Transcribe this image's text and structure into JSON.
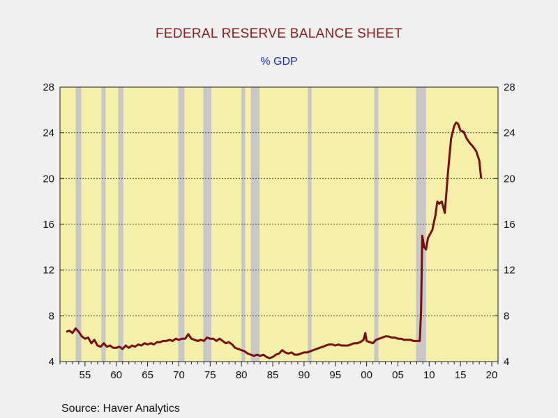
{
  "chart_data": {
    "type": "line",
    "title": "FEDERAL RESERVE BALANCE SHEET",
    "subtitle": "% GDP",
    "source": "Source:  Haver Analytics",
    "xlim": [
      1951,
      2021
    ],
    "ylim": [
      4,
      28
    ],
    "y_ticks": [
      4,
      8,
      12,
      16,
      20,
      24,
      28
    ],
    "x_ticks": [
      {
        "year": 1955,
        "label": "55"
      },
      {
        "year": 1960,
        "label": "60"
      },
      {
        "year": 1965,
        "label": "65"
      },
      {
        "year": 1970,
        "label": "70"
      },
      {
        "year": 1975,
        "label": "75"
      },
      {
        "year": 1980,
        "label": "80"
      },
      {
        "year": 1985,
        "label": "85"
      },
      {
        "year": 1990,
        "label": "90"
      },
      {
        "year": 1995,
        "label": "95"
      },
      {
        "year": 2000,
        "label": "00"
      },
      {
        "year": 2005,
        "label": "05"
      },
      {
        "year": 2010,
        "label": "10"
      },
      {
        "year": 2015,
        "label": "15"
      },
      {
        "year": 2020,
        "label": "20"
      }
    ],
    "recessions": [
      [
        1953.5,
        1954.4
      ],
      [
        1957.6,
        1958.3
      ],
      [
        1960.3,
        1961.1
      ],
      [
        1969.9,
        1970.9
      ],
      [
        1973.9,
        1975.2
      ],
      [
        1980.0,
        1980.6
      ],
      [
        1981.5,
        1982.9
      ],
      [
        1990.6,
        1991.2
      ],
      [
        2001.2,
        2001.9
      ],
      [
        2007.9,
        2009.5
      ]
    ],
    "grid_y": true,
    "colors": {
      "plot_bg": "#f5f0a8",
      "recession": "#c8c8c8",
      "line": "#7b0d0d",
      "title": "#8b1a1a",
      "subtitle": "#1f2fbf"
    },
    "series": [
      {
        "x": [
          1952.0,
          1952.5,
          1953.0,
          1953.5,
          1954.0,
          1954.5,
          1955.0,
          1955.5,
          1956.0,
          1956.5,
          1957.0,
          1957.5,
          1958.0,
          1958.5,
          1959.0,
          1959.5,
          1960.0,
          1960.5,
          1961.0,
          1961.5,
          1962.0,
          1962.5,
          1963.0,
          1963.5,
          1964.0,
          1964.5,
          1965.0,
          1965.5,
          1966.0,
          1966.5,
          1967.0,
          1967.5,
          1968.0,
          1968.5,
          1969.0,
          1969.5,
          1970.0,
          1970.5,
          1971.0,
          1971.5,
          1972.0,
          1972.5,
          1973.0,
          1973.5,
          1974.0,
          1974.5,
          1975.0,
          1975.5,
          1976.0,
          1976.5,
          1977.0,
          1977.5,
          1978.0,
          1978.5,
          1979.0,
          1979.5,
          1980.0,
          1980.5,
          1981.0,
          1981.5,
          1982.0,
          1982.5,
          1983.0,
          1983.5,
          1984.0,
          1984.5,
          1985.0,
          1985.5,
          1986.0,
          1986.5,
          1987.0,
          1987.5,
          1988.0,
          1988.5,
          1989.0,
          1989.5,
          1990.0,
          1990.5,
          1991.0,
          1991.5,
          1992.0,
          1992.5,
          1993.0,
          1993.5,
          1994.0,
          1994.5,
          1995.0,
          1995.5,
          1996.0,
          1996.5,
          1997.0,
          1997.5,
          1998.0,
          1998.5,
          1999.0,
          1999.5,
          1999.8,
          2000.0,
          2000.5,
          2001.0,
          2001.5,
          2002.0,
          2002.5,
          2003.0,
          2003.5,
          2004.0,
          2004.5,
          2005.0,
          2005.5,
          2006.0,
          2006.5,
          2007.0,
          2007.5,
          2008.0,
          2008.5,
          2008.7,
          2008.9,
          2009.2,
          2009.5,
          2009.8,
          2010.0,
          2010.5,
          2011.0,
          2011.3,
          2011.6,
          2012.0,
          2012.5,
          2013.0,
          2013.5,
          2014.0,
          2014.3,
          2014.6,
          2015.0,
          2015.5,
          2016.0,
          2016.5,
          2017.0,
          2017.5,
          2018.0,
          2018.3
        ],
        "values": [
          6.6,
          6.7,
          6.5,
          6.9,
          6.6,
          6.2,
          6.0,
          6.1,
          5.6,
          5.9,
          5.4,
          5.3,
          5.6,
          5.3,
          5.4,
          5.2,
          5.2,
          5.3,
          5.1,
          5.4,
          5.2,
          5.4,
          5.3,
          5.5,
          5.4,
          5.6,
          5.5,
          5.6,
          5.5,
          5.7,
          5.7,
          5.8,
          5.8,
          5.9,
          5.8,
          6.0,
          5.9,
          6.0,
          6.0,
          6.4,
          6.0,
          5.9,
          5.8,
          5.9,
          5.8,
          6.1,
          6.0,
          6.0,
          5.8,
          6.0,
          5.8,
          5.6,
          5.7,
          5.5,
          5.2,
          5.1,
          5.0,
          4.9,
          4.7,
          4.6,
          4.5,
          4.6,
          4.5,
          4.6,
          4.4,
          4.3,
          4.4,
          4.6,
          4.7,
          5.0,
          4.8,
          4.7,
          4.8,
          4.6,
          4.6,
          4.7,
          4.8,
          4.8,
          4.9,
          5.0,
          5.1,
          5.2,
          5.3,
          5.4,
          5.5,
          5.5,
          5.4,
          5.5,
          5.4,
          5.4,
          5.4,
          5.5,
          5.6,
          5.6,
          5.7,
          5.9,
          6.5,
          5.8,
          5.7,
          5.6,
          5.9,
          6.0,
          6.1,
          6.2,
          6.2,
          6.1,
          6.1,
          6.0,
          6.0,
          5.9,
          5.9,
          5.9,
          5.8,
          5.8,
          5.8,
          8.5,
          15.0,
          14.0,
          13.8,
          14.8,
          15.0,
          15.5,
          16.8,
          18.0,
          17.8,
          18.0,
          17.0,
          20.5,
          23.5,
          24.6,
          24.9,
          24.8,
          24.2,
          24.1,
          23.5,
          23.1,
          22.8,
          22.4,
          21.6,
          20.0
        ]
      }
    ]
  }
}
